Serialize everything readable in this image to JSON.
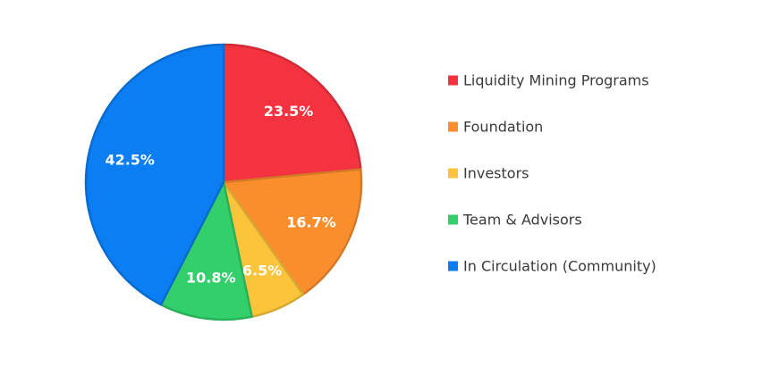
{
  "chart_data": {
    "type": "pie",
    "title": "",
    "legend_position": "right",
    "start_angle_deg": 0,
    "direction": "clockwise",
    "slices": [
      {
        "label": "Liquidity Mining Programs",
        "value": 23.5,
        "display": "23.5%",
        "color": "#f53340"
      },
      {
        "label": "Foundation",
        "value": 16.7,
        "display": "16.7%",
        "color": "#fa8e2d"
      },
      {
        "label": "Investors",
        "value": 6.5,
        "display": "6.5%",
        "color": "#fcc43a"
      },
      {
        "label": "Team & Advisors",
        "value": 10.8,
        "display": "10.8%",
        "color": "#33cf6a"
      },
      {
        "label": "In Circulation (Community)",
        "value": 42.5,
        "display": "42.5%",
        "color": "#0a7ef2"
      }
    ]
  }
}
